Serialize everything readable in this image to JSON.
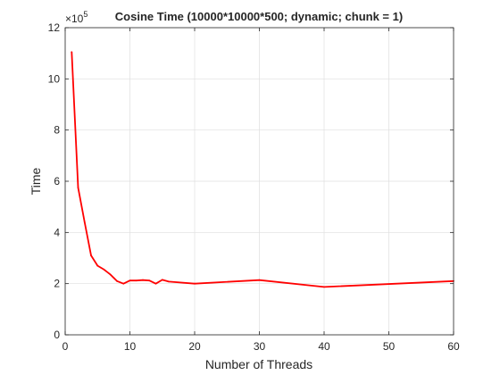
{
  "chart_data": {
    "type": "line",
    "title": "Cosine Time (10000*10000*500; dynamic; chunk = 1)",
    "xlabel": "Number of Threads",
    "ylabel": "Time",
    "xlim": [
      0,
      60
    ],
    "ylim": [
      0,
      1200000
    ],
    "xticks": [
      0,
      10,
      20,
      30,
      40,
      50,
      60
    ],
    "yticks": [
      0,
      2,
      4,
      6,
      8,
      10,
      12
    ],
    "y_exponent_base": "×10",
    "y_exponent_power": "5",
    "grid": true,
    "series": [
      {
        "color": "#ff0000",
        "x": [
          1,
          2,
          3,
          4,
          5,
          6,
          7,
          8,
          9,
          10,
          11,
          12,
          13,
          14,
          15,
          16,
          20,
          30,
          40,
          60
        ],
        "y": [
          1105000,
          575000,
          440000,
          310000,
          270000,
          255000,
          235000,
          210000,
          200000,
          212000,
          212000,
          214000,
          212000,
          200000,
          215000,
          208000,
          200000,
          214000,
          187000,
          210000
        ]
      }
    ]
  }
}
